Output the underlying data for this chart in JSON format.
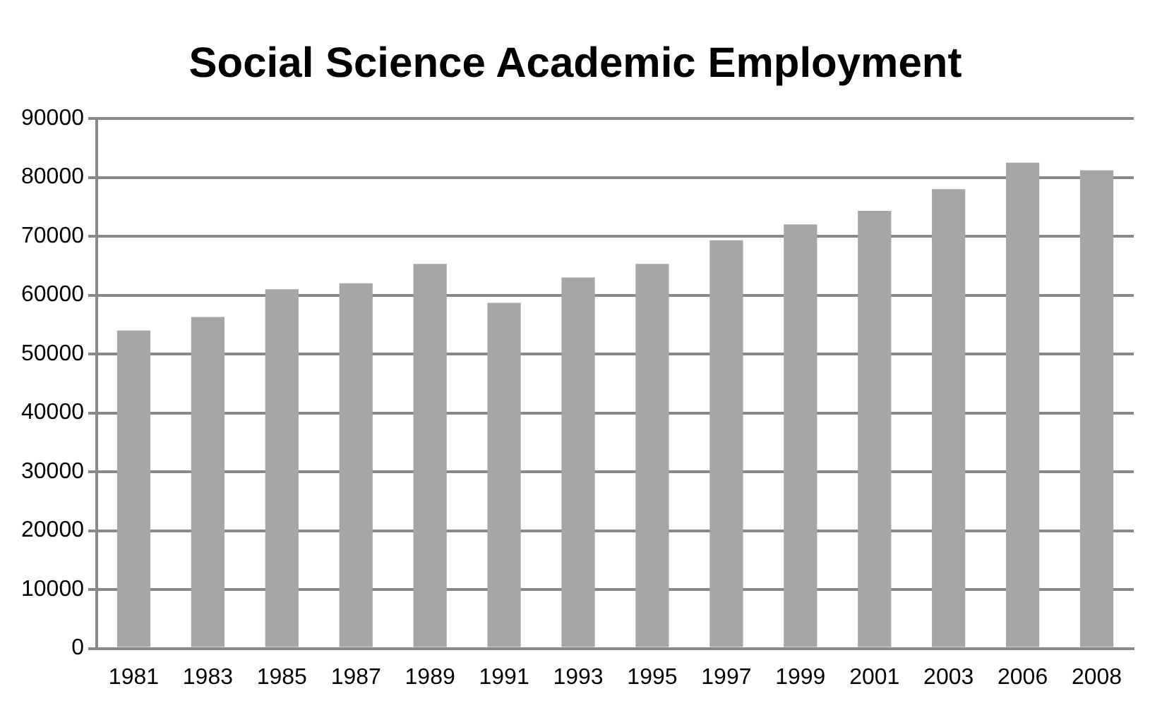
{
  "chart_data": {
    "type": "bar",
    "title": "Social Science Academic Employment",
    "categories": [
      "1981",
      "1983",
      "1985",
      "1987",
      "1989",
      "1991",
      "1993",
      "1995",
      "1997",
      "1999",
      "2001",
      "2003",
      "2006",
      "2008"
    ],
    "values": [
      54000,
      56300,
      61000,
      62000,
      65300,
      58700,
      63000,
      65300,
      69300,
      72000,
      74300,
      78000,
      82500,
      81200
    ],
    "color": "#a6a6a6",
    "ylim": [
      0,
      90000
    ],
    "yticks": [
      0,
      10000,
      20000,
      30000,
      40000,
      50000,
      60000,
      70000,
      80000,
      90000
    ],
    "grid": "y",
    "legend": false
  }
}
